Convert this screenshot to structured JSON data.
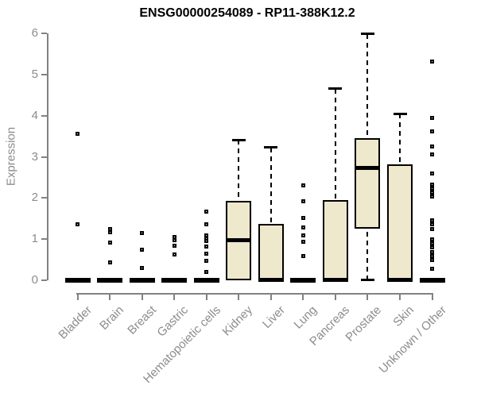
{
  "chart_data": {
    "type": "boxplot",
    "title": "ENSG00000254089 - RP11-388K12.2",
    "ylabel": "Expression",
    "xlabel": "",
    "ylim": [
      0,
      6
    ],
    "yticks": [
      0,
      1,
      2,
      3,
      4,
      5,
      6
    ],
    "grid": false,
    "legend": "none",
    "categories": [
      "Bladder",
      "Brain",
      "Breast",
      "Gastric",
      "Hematopoietic cells",
      "Kidney",
      "Liver",
      "Lung",
      "Pancreas",
      "Prostate",
      "Skin",
      "Unknown / Other"
    ],
    "series": [
      {
        "name": "Bladder",
        "q1": 0,
        "median": 0,
        "q3": 0,
        "whisker_low": 0,
        "whisker_high": 0,
        "outliers": [
          3.56,
          1.36
        ]
      },
      {
        "name": "Brain",
        "q1": 0,
        "median": 0,
        "q3": 0,
        "whisker_low": 0,
        "whisker_high": 0,
        "outliers": [
          1.25,
          1.16,
          0.91,
          0.43
        ]
      },
      {
        "name": "Breast",
        "q1": 0,
        "median": 0,
        "q3": 0,
        "whisker_low": 0,
        "whisker_high": 0,
        "outliers": [
          1.14,
          0.74,
          0.29
        ]
      },
      {
        "name": "Gastric",
        "q1": 0,
        "median": 0,
        "q3": 0,
        "whisker_low": 0,
        "whisker_high": 0,
        "outliers": [
          1.04,
          0.97,
          0.84,
          0.63
        ]
      },
      {
        "name": "Hematopoietic cells",
        "q1": 0,
        "median": 0,
        "q3": 0,
        "whisker_low": 0,
        "whisker_high": 0,
        "outliers": [
          1.67,
          1.35,
          1.09,
          1.0,
          0.95,
          0.82,
          0.64,
          0.47,
          0.2
        ]
      },
      {
        "name": "Kidney",
        "q1": 0,
        "median": 0.98,
        "q3": 1.93,
        "whisker_low": 0,
        "whisker_high": 3.41,
        "outliers": []
      },
      {
        "name": "Liver",
        "q1": 0,
        "median": 0,
        "q3": 1.36,
        "whisker_low": 0,
        "whisker_high": 3.23,
        "outliers": []
      },
      {
        "name": "Lung",
        "q1": 0,
        "median": 0,
        "q3": 0,
        "whisker_low": 0,
        "whisker_high": 0,
        "outliers": [
          2.31,
          1.92,
          1.51,
          1.27,
          1.09,
          0.93,
          0.59
        ]
      },
      {
        "name": "Pancreas",
        "q1": 0,
        "median": 0,
        "q3": 1.94,
        "whisker_low": 0,
        "whisker_high": 4.66,
        "outliers": []
      },
      {
        "name": "Prostate",
        "q1": 1.26,
        "median": 2.72,
        "q3": 3.46,
        "whisker_low": 0,
        "whisker_high": 5.99,
        "outliers": []
      },
      {
        "name": "Skin",
        "q1": 0,
        "median": 0,
        "q3": 2.81,
        "whisker_low": 0,
        "whisker_high": 4.05,
        "outliers": []
      },
      {
        "name": "Unknown / Other",
        "q1": 0,
        "median": 0,
        "q3": 0,
        "whisker_low": 0,
        "whisker_high": 0,
        "outliers": [
          5.31,
          3.94,
          3.61,
          3.25,
          3.06,
          2.59,
          2.33,
          2.23,
          2.13,
          2.03,
          1.45,
          1.35,
          1.25,
          0.99,
          0.89,
          0.79,
          0.69,
          0.59,
          0.49,
          0.28
        ]
      }
    ],
    "colors": {
      "box_fill": "#EEE8CD",
      "box_border": "#000000",
      "median": "#000000",
      "whisker": "#000000",
      "axis": "#828282",
      "tick_label": "#8c8c8c",
      "title": "#000000",
      "background": "#ffffff"
    }
  }
}
